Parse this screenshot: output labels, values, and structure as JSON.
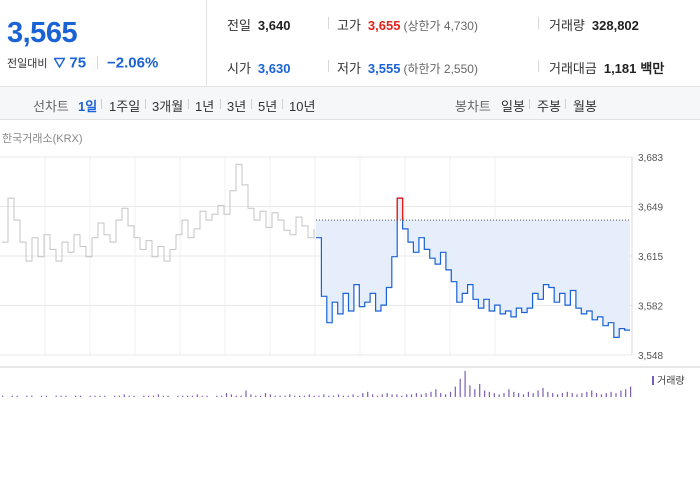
{
  "summary": {
    "current_price": "3,565",
    "change_label": "전일대비",
    "change_icon": "down-triangle-icon",
    "change_amount": "75",
    "change_rate": "−2.06%",
    "prev_close_label": "전일",
    "prev_close": "3,640",
    "high_label": "고가",
    "high": "3,655",
    "upper_limit": "(상한가 4,730)",
    "volume_label": "거래량",
    "volume": "328,802",
    "open_label": "시가",
    "open": "3,630",
    "low_label": "저가",
    "low": "3,555",
    "lower_limit": "(하한가 2,550)",
    "trade_value_label": "거래대금",
    "trade_value": "1,181",
    "trade_value_unit": "백만"
  },
  "colors": {
    "down": "#1a62d6",
    "up": "#e2231a",
    "fill": "#e5eefa",
    "history_line": "#c4c4c4",
    "volume_bar": "#7a5fb5"
  },
  "tabs": {
    "line_label": "선차트",
    "line_periods": [
      {
        "label": "1일",
        "active": true
      },
      {
        "label": "1주일",
        "active": false
      },
      {
        "label": "3개월",
        "active": false
      },
      {
        "label": "1년",
        "active": false
      },
      {
        "label": "3년",
        "active": false
      },
      {
        "label": "5년",
        "active": false
      },
      {
        "label": "10년",
        "active": false
      }
    ],
    "candle_label": "봉차트",
    "candle_periods": [
      {
        "label": "일봉"
      },
      {
        "label": "주봉"
      },
      {
        "label": "월봉"
      }
    ]
  },
  "chart": {
    "source": "한국거래소(KRX)",
    "volume_legend": "거래량"
  },
  "chart_data": {
    "type": "line",
    "yticks": [
      "3,683",
      "3,649",
      "3,615",
      "3,582",
      "3,548"
    ],
    "ylim": [
      3548,
      3683
    ],
    "grid": true,
    "reference_value": 3640,
    "series": [
      {
        "values": [
          3625,
          3655,
          3640,
          3625,
          3612,
          3628,
          3615,
          3630,
          3620,
          3612,
          3625,
          3618,
          3630,
          3622,
          3615,
          3628,
          3638,
          3630,
          3625,
          3640,
          3648,
          3636,
          3628,
          3620,
          3626,
          3615,
          3622,
          3612,
          3620,
          3630,
          3640,
          3628,
          3634,
          3646,
          3640,
          3644,
          3650,
          3644,
          3660,
          3678,
          3664,
          3648,
          3640,
          3646,
          3635,
          3645,
          3640,
          3633,
          3630,
          3642,
          3636,
          3628,
          3634
        ]
      },
      {
        "values": [
          3628,
          3588,
          3570,
          3584,
          3576,
          3590,
          3578,
          3596,
          3581,
          3584,
          3590,
          3578,
          3582,
          3594,
          3615,
          3655,
          3634,
          3625,
          3618,
          3628,
          3620,
          3614,
          3610,
          3618,
          3606,
          3598,
          3584,
          3590,
          3596,
          3586,
          3580,
          3586,
          3578,
          3582,
          3576,
          3578,
          3574,
          3580,
          3577,
          3580,
          3590,
          3586,
          3596,
          3594,
          3584,
          3590,
          3582,
          3592,
          3580,
          3576,
          3578,
          3572,
          3574,
          3568,
          3570,
          3560,
          3566,
          3565,
          3565
        ]
      }
    ],
    "volume_values": [
      1,
      0,
      1,
      1,
      0,
      1,
      1,
      0,
      1,
      1,
      0,
      1,
      1,
      1,
      0,
      1,
      1,
      0,
      1,
      1,
      1,
      1,
      0,
      1,
      1,
      2,
      1,
      1,
      0,
      1,
      1,
      1,
      2,
      1,
      1,
      0,
      1,
      1,
      1,
      1,
      2,
      1,
      1,
      0,
      1,
      1,
      3,
      2,
      1,
      1,
      5,
      2,
      1,
      1,
      3,
      2,
      1,
      1,
      1,
      2,
      1,
      1,
      1,
      2,
      1,
      1,
      2,
      1,
      1,
      2,
      1,
      1,
      2,
      1,
      3,
      4,
      2,
      1,
      2,
      3,
      2,
      2,
      1,
      2,
      2,
      3,
      2,
      3,
      4,
      6,
      3,
      2,
      4,
      8,
      14,
      20,
      9,
      6,
      10,
      5,
      4,
      3,
      2,
      3,
      6,
      4,
      3,
      2,
      4,
      3,
      5,
      7,
      4,
      3,
      2,
      3,
      4,
      3,
      2,
      3,
      4,
      5,
      3,
      2,
      3,
      4,
      3,
      5,
      6,
      8
    ]
  }
}
